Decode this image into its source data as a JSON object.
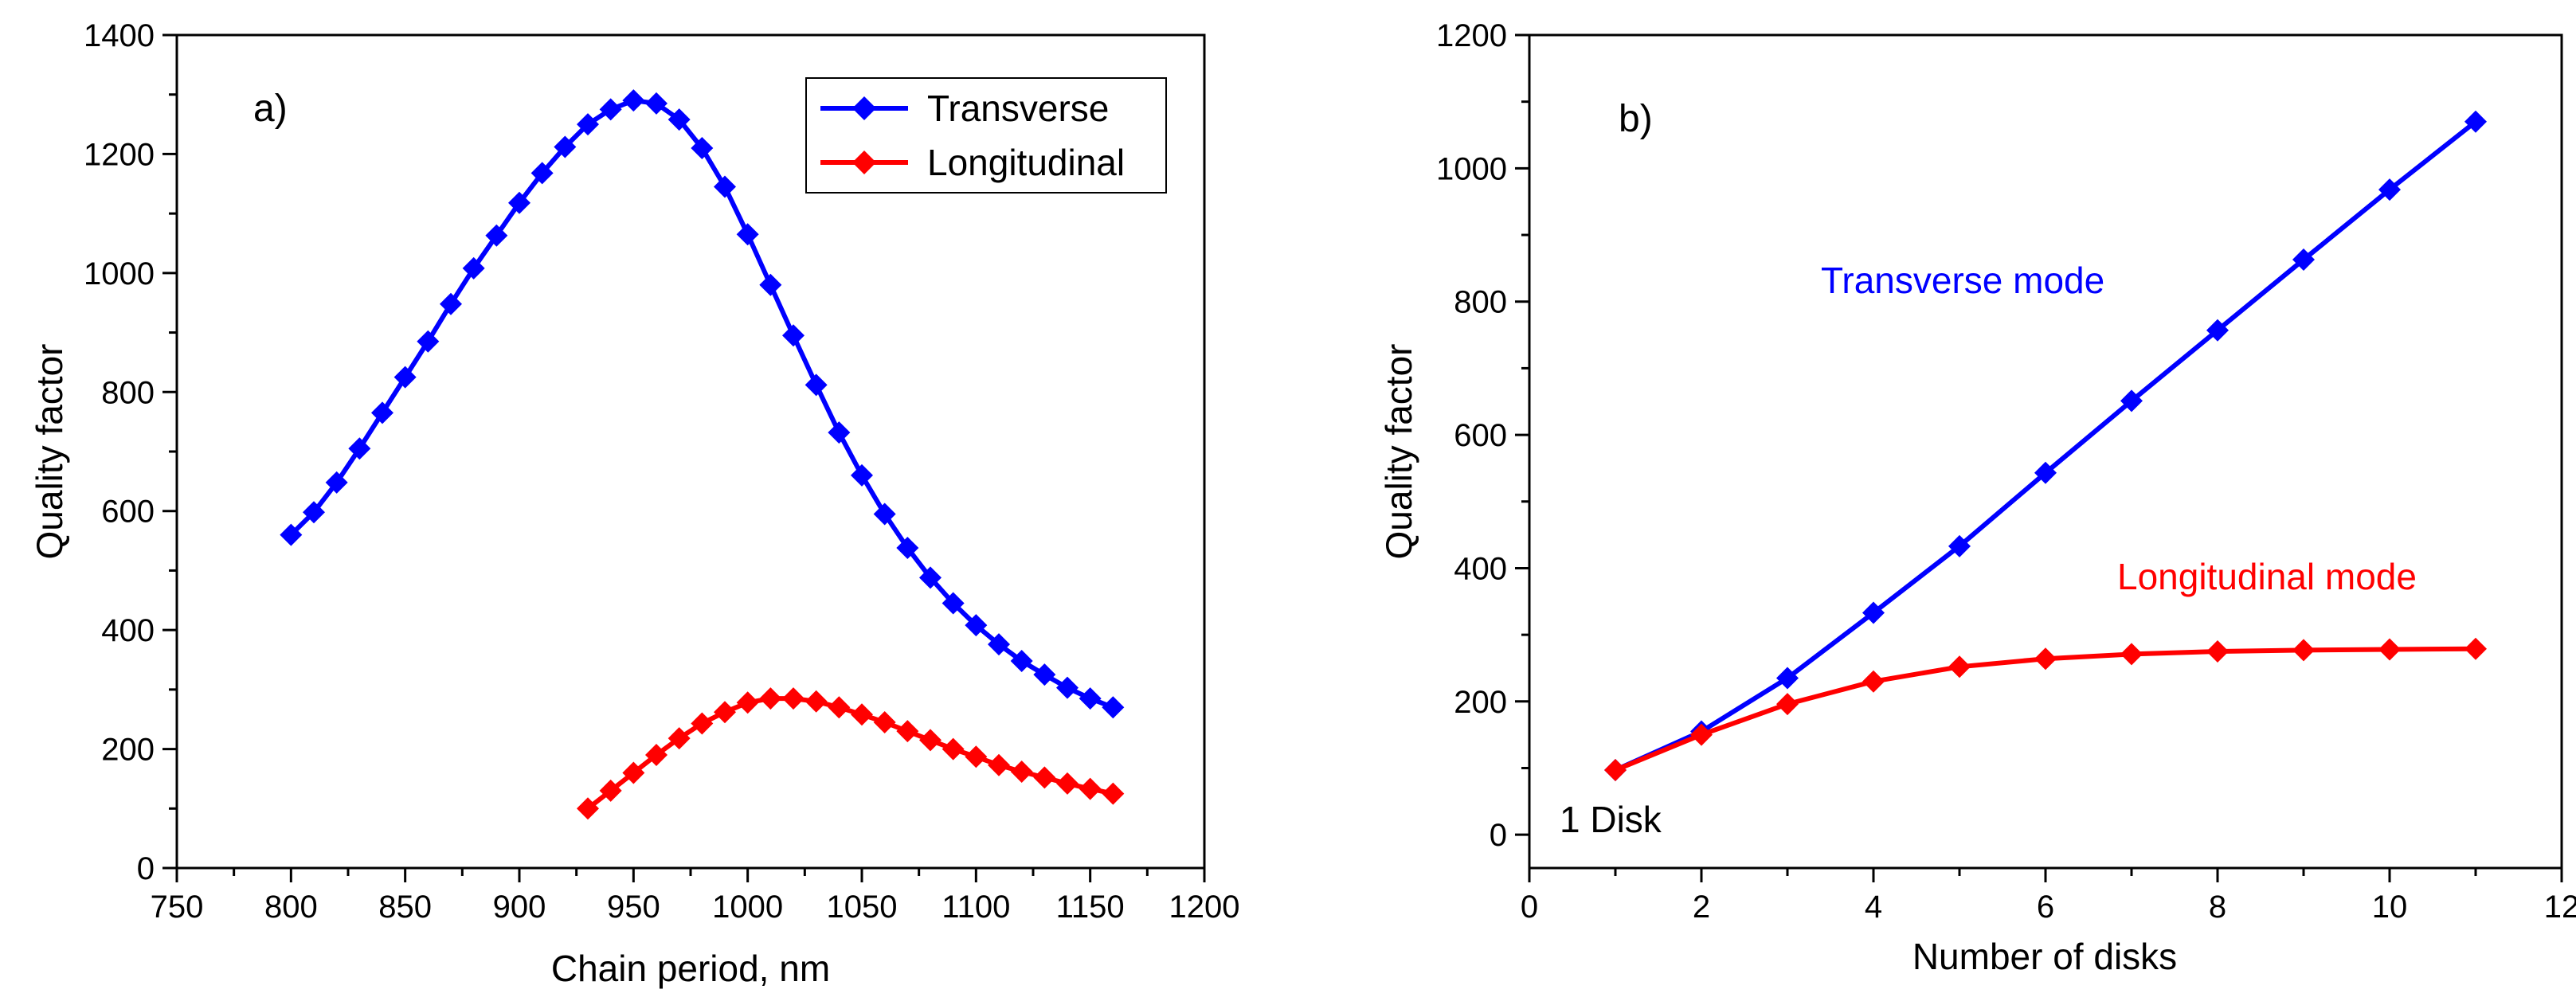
{
  "chart_data": [
    {
      "type": "line",
      "panel_label": "a)",
      "xlabel": "Chain period, nm",
      "ylabel": "Quality factor",
      "xlim": [
        750,
        1200
      ],
      "ylim": [
        0,
        1400
      ],
      "xticks": [
        750,
        800,
        850,
        900,
        950,
        1000,
        1050,
        1100,
        1150,
        1200
      ],
      "yticks": [
        0,
        200,
        400,
        600,
        800,
        1000,
        1200,
        1400
      ],
      "legend_position": "top-right",
      "series": [
        {
          "name": "Transverse",
          "color": "#0000ff",
          "marker": "diamond",
          "x": [
            800,
            810,
            820,
            830,
            840,
            850,
            860,
            870,
            880,
            890,
            900,
            910,
            920,
            930,
            940,
            950,
            960,
            970,
            980,
            990,
            1000,
            1010,
            1020,
            1030,
            1040,
            1050,
            1060,
            1070,
            1080,
            1090,
            1100,
            1110,
            1120,
            1130,
            1140,
            1150,
            1160
          ],
          "y": [
            560,
            598,
            648,
            705,
            765,
            825,
            885,
            948,
            1008,
            1063,
            1118,
            1168,
            1212,
            1250,
            1275,
            1290,
            1285,
            1258,
            1210,
            1145,
            1065,
            980,
            895,
            812,
            732,
            660,
            595,
            538,
            488,
            445,
            408,
            376,
            348,
            325,
            303,
            285,
            270
          ]
        },
        {
          "name": "Longitudinal",
          "color": "#ff0000",
          "marker": "diamond",
          "x": [
            930,
            940,
            950,
            960,
            970,
            980,
            990,
            1000,
            1010,
            1020,
            1030,
            1040,
            1050,
            1060,
            1070,
            1080,
            1090,
            1100,
            1110,
            1120,
            1130,
            1140,
            1150,
            1160
          ],
          "y": [
            100,
            130,
            160,
            190,
            218,
            243,
            262,
            278,
            285,
            285,
            280,
            270,
            258,
            245,
            230,
            215,
            200,
            187,
            173,
            162,
            152,
            142,
            133,
            125
          ]
        }
      ]
    },
    {
      "type": "line",
      "panel_label": "b)",
      "xlabel": "Number of disks",
      "ylabel": "Quality factor",
      "xlim": [
        0,
        12
      ],
      "ylim": [
        -50,
        1200
      ],
      "xticks": [
        0,
        2,
        4,
        6,
        8,
        10,
        12
      ],
      "yticks": [
        0,
        200,
        400,
        600,
        800,
        1000,
        1200
      ],
      "annotations": [
        "Transverse mode",
        "Longitudinal mode",
        "1 Disk"
      ],
      "series": [
        {
          "name": "Transverse mode",
          "color": "#0000ff",
          "marker": "diamond",
          "x": [
            1,
            2,
            3,
            4,
            5,
            6,
            7,
            8,
            9,
            10,
            11
          ],
          "y": [
            97,
            155,
            235,
            333,
            433,
            543,
            651,
            757,
            863,
            968,
            1070
          ]
        },
        {
          "name": "Longitudinal mode",
          "color": "#ff0000",
          "marker": "diamond",
          "x": [
            1,
            2,
            3,
            4,
            5,
            6,
            7,
            8,
            9,
            10,
            11
          ],
          "y": [
            97,
            150,
            196,
            230,
            252,
            264,
            271,
            275,
            277,
            278,
            279
          ]
        }
      ]
    }
  ]
}
